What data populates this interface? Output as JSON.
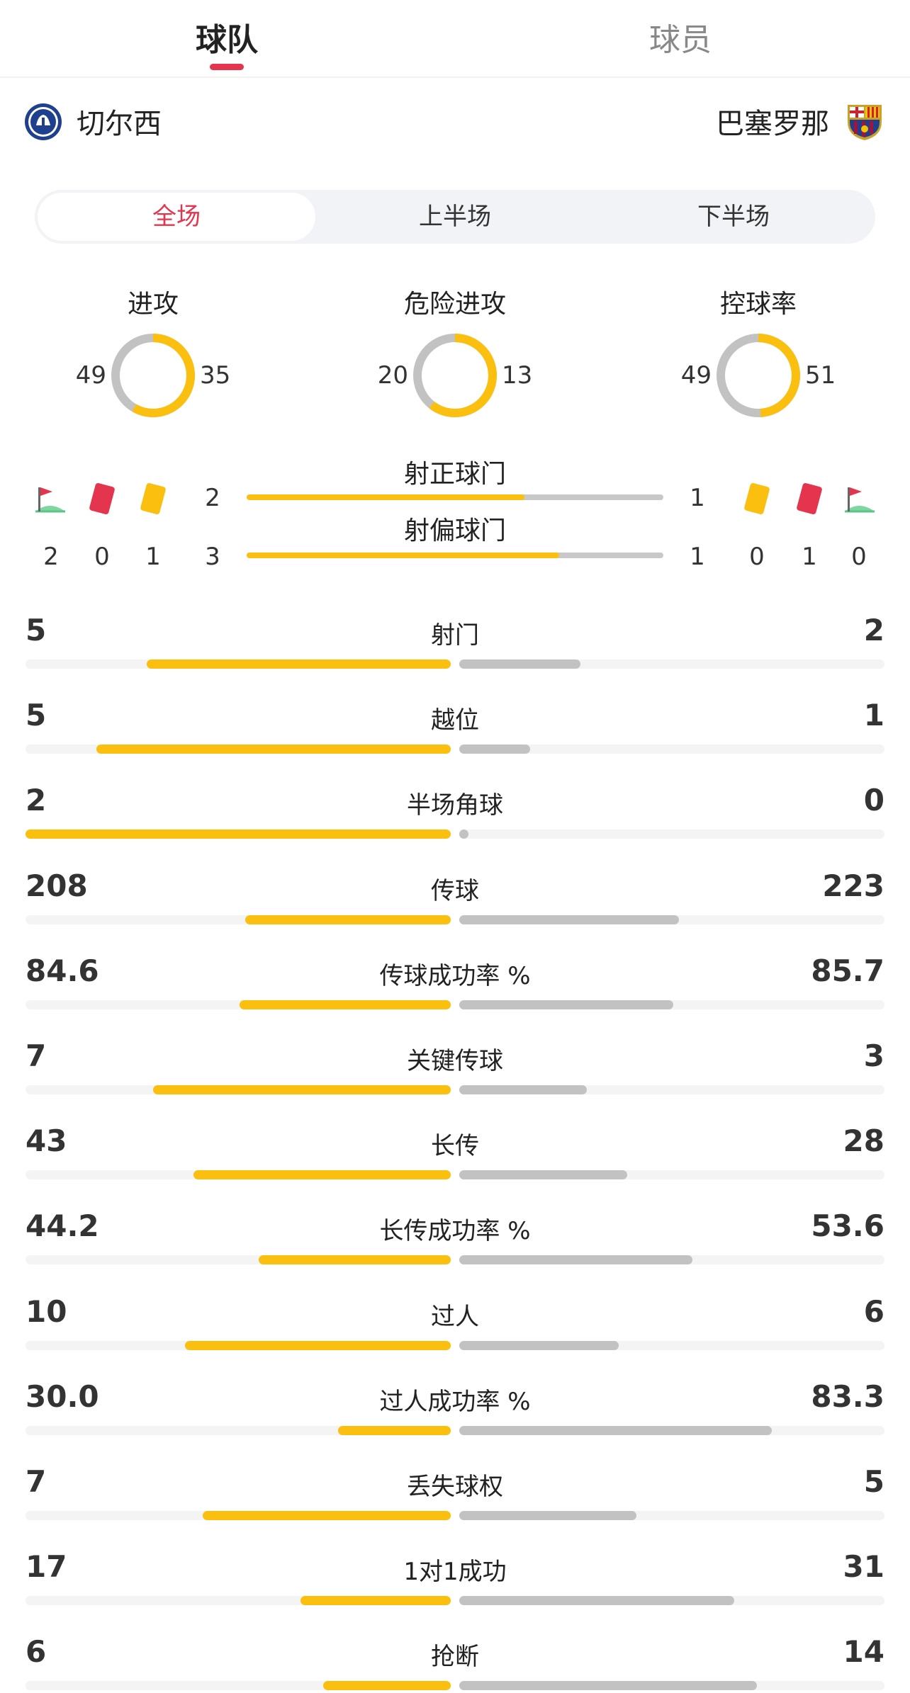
{
  "tabs": {
    "team": "球队",
    "player": "球员"
  },
  "teams": {
    "home": "切尔西",
    "away": "巴塞罗那"
  },
  "periods": [
    "全场",
    "上半场",
    "下半场"
  ],
  "colors": {
    "home": "#fbbf10",
    "away": "#c2c2c2",
    "accent": "#e4344e"
  },
  "donuts": [
    {
      "title": "进攻",
      "home": 49,
      "away": 35
    },
    {
      "title": "危险进攻",
      "home": 20,
      "away": 13
    },
    {
      "title": "控球率",
      "home": 49,
      "away": 51
    }
  ],
  "shots": {
    "on_target": {
      "label": "射正球门",
      "home": 2,
      "away": 1
    },
    "off_target": {
      "label": "射偏球门",
      "home": 3,
      "away": 1
    }
  },
  "cards": {
    "home": {
      "corners": 2,
      "red": 0,
      "yellow": 1
    },
    "away": {
      "yellow": 0,
      "red": 1,
      "corners": 0
    }
  },
  "stats": [
    {
      "label": "射门",
      "home": "5",
      "away": "2"
    },
    {
      "label": "越位",
      "home": "5",
      "away": "1"
    },
    {
      "label": "半场角球",
      "home": "2",
      "away": "0"
    },
    {
      "label": "传球",
      "home": "208",
      "away": "223"
    },
    {
      "label": "传球成功率 %",
      "home": "84.6",
      "away": "85.7"
    },
    {
      "label": "关键传球",
      "home": "7",
      "away": "3"
    },
    {
      "label": "长传",
      "home": "43",
      "away": "28"
    },
    {
      "label": "长传成功率 %",
      "home": "44.2",
      "away": "53.6"
    },
    {
      "label": "过人",
      "home": "10",
      "away": "6"
    },
    {
      "label": "过人成功率 %",
      "home": "30.0",
      "away": "83.3"
    },
    {
      "label": "丢失球权",
      "home": "7",
      "away": "5"
    },
    {
      "label": "1对1成功",
      "home": "17",
      "away": "31"
    },
    {
      "label": "抢断",
      "home": "6",
      "away": "14"
    }
  ]
}
